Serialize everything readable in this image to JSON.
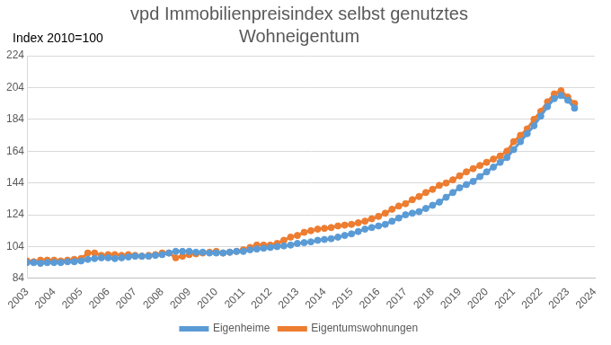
{
  "chart_data": {
    "type": "line",
    "title": [
      "vpd Immobilienpreisindex selbst genutztes",
      "Wohneigentum"
    ],
    "annotation": "Index 2010=100",
    "x": [
      2003,
      2003.25,
      2003.5,
      2003.75,
      2004,
      2004.25,
      2004.5,
      2004.75,
      2005,
      2005.25,
      2005.5,
      2005.75,
      2006,
      2006.25,
      2006.5,
      2006.75,
      2007,
      2007.25,
      2007.5,
      2007.75,
      2008,
      2008.25,
      2008.5,
      2008.75,
      2009,
      2009.25,
      2009.5,
      2009.75,
      2010,
      2010.25,
      2010.5,
      2010.75,
      2011,
      2011.25,
      2011.5,
      2011.75,
      2012,
      2012.25,
      2012.5,
      2012.75,
      2013,
      2013.25,
      2013.5,
      2013.75,
      2014,
      2014.25,
      2014.5,
      2014.75,
      2015,
      2015.25,
      2015.5,
      2015.75,
      2016,
      2016.25,
      2016.5,
      2016.75,
      2017,
      2017.25,
      2017.5,
      2017.75,
      2018,
      2018.25,
      2018.5,
      2018.75,
      2019,
      2019.25,
      2019.5,
      2019.75,
      2020,
      2020.25,
      2020.5,
      2020.75,
      2021,
      2021.25,
      2021.5,
      2021.75,
      2022,
      2022.25,
      2022.5,
      2022.75,
      2023,
      2023.25
    ],
    "series": [
      {
        "name": "Eigenheime",
        "color": "#5b9bd5",
        "marker": "circle",
        "line_style": "solid",
        "values": [
          94,
          94,
          93.5,
          94,
          94,
          94,
          94.5,
          94.5,
          95,
          96,
          96.5,
          97,
          97,
          96.5,
          97,
          97.5,
          98,
          98,
          98,
          98.5,
          99,
          100,
          101,
          101,
          101,
          100.5,
          100.5,
          100,
          100,
          100,
          100.5,
          101,
          101,
          102,
          102.5,
          103,
          103.5,
          104,
          104.5,
          105,
          106,
          106.5,
          107,
          108,
          108.5,
          109,
          110,
          111,
          112,
          113.5,
          115,
          116,
          117,
          118,
          120,
          122,
          124,
          125,
          126,
          128,
          130,
          132,
          135,
          138,
          141,
          143,
          145,
          148,
          151,
          154,
          157,
          160,
          165,
          170,
          175,
          180,
          186,
          192,
          197,
          199,
          196,
          191
        ]
      },
      {
        "name": "Eigentumswohnungen",
        "color": "#ed7d31",
        "marker": "circle",
        "line_style": "solid",
        "values": [
          95,
          94.5,
          95.5,
          95.5,
          95.5,
          95,
          95.5,
          96,
          96.5,
          100,
          100,
          98.5,
          99,
          99,
          98.5,
          99,
          98.5,
          98,
          98.5,
          99,
          100,
          100,
          97,
          98,
          99,
          99.5,
          100,
          100.5,
          101,
          100,
          100.5,
          101,
          102,
          103.5,
          105,
          105,
          105,
          106,
          108,
          110,
          111,
          113,
          114,
          115,
          115.5,
          116,
          117,
          117.5,
          118,
          119,
          120,
          121.5,
          123,
          125,
          127.5,
          129.5,
          131,
          133.5,
          135.5,
          138,
          140,
          142.5,
          144,
          146,
          148.5,
          151,
          153,
          155,
          157,
          159,
          161,
          164,
          170,
          174,
          178,
          184,
          189,
          195,
          200,
          202,
          198,
          194
        ]
      }
    ],
    "xlim": [
      2003,
      2024
    ],
    "xticks": [
      2003,
      2004,
      2005,
      2006,
      2007,
      2008,
      2009,
      2010,
      2011,
      2012,
      2013,
      2014,
      2015,
      2016,
      2017,
      2018,
      2019,
      2020,
      2021,
      2022,
      2023,
      2024
    ],
    "ylim": [
      84,
      224
    ],
    "yticks": [
      84,
      104,
      124,
      144,
      164,
      184,
      204,
      224
    ],
    "grid": "y",
    "legend": "bottom"
  }
}
